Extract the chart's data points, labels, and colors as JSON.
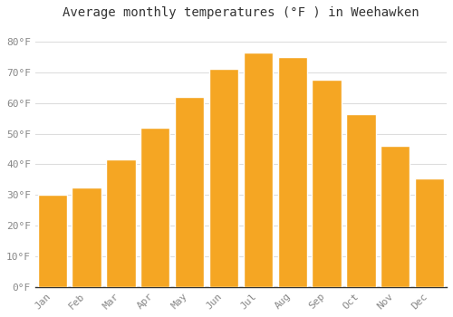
{
  "title": "Average monthly temperatures (°F ) in Weehawken",
  "months": [
    "Jan",
    "Feb",
    "Mar",
    "Apr",
    "May",
    "Jun",
    "Jul",
    "Aug",
    "Sep",
    "Oct",
    "Nov",
    "Dec"
  ],
  "values": [
    30,
    32.5,
    41.5,
    52,
    62,
    71,
    76.5,
    75,
    67.5,
    56.5,
    46,
    35.5
  ],
  "bar_color": "#F5A623",
  "bar_edge_color": "#FFFFFF",
  "ylim": [
    0,
    85
  ],
  "yticks": [
    0,
    10,
    20,
    30,
    40,
    50,
    60,
    70,
    80
  ],
  "ytick_labels": [
    "0°F",
    "10°F",
    "20°F",
    "30°F",
    "40°F",
    "50°F",
    "60°F",
    "70°F",
    "80°F"
  ],
  "background_color": "#FFFFFF",
  "plot_bg_color": "#FFFFFF",
  "grid_color": "#DDDDDD",
  "title_fontsize": 10,
  "tick_fontsize": 8,
  "tick_color": "#888888",
  "font_family": "monospace",
  "bar_width": 0.85
}
